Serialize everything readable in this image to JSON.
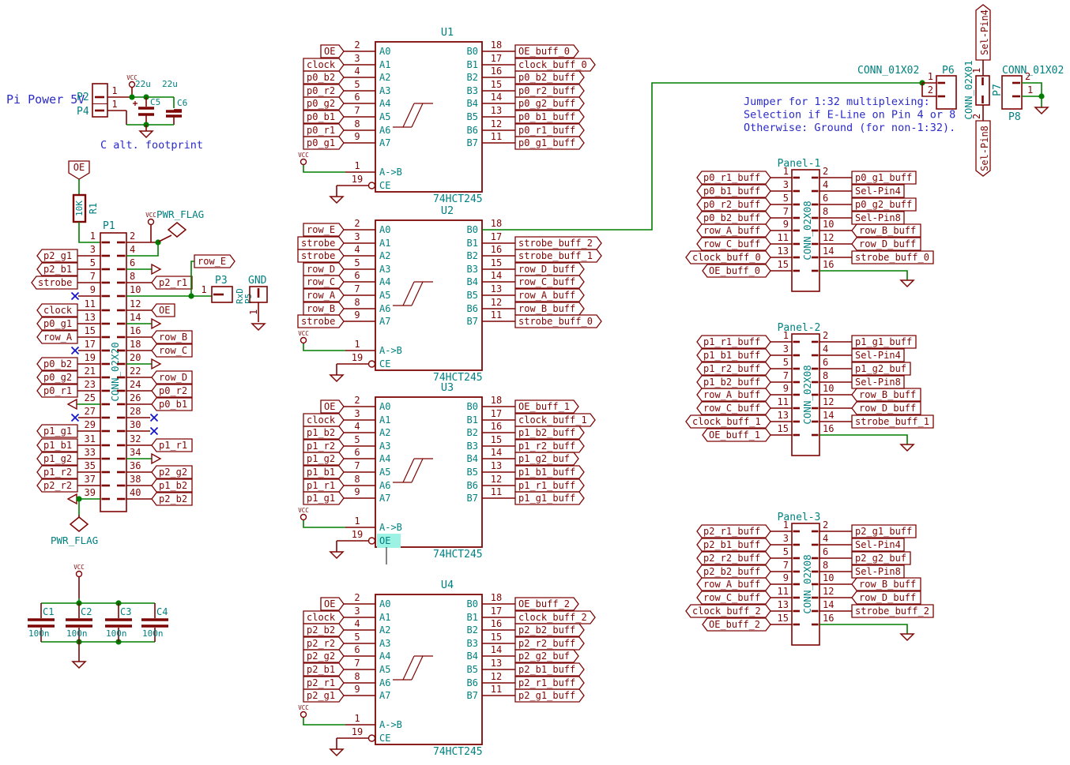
{
  "colors": {
    "part": "#7d0503",
    "wire": "#007d00",
    "accent": "#008080",
    "note": "#2a2ac8",
    "nc": "#1414cc",
    "highlight": "#9cf2e3",
    "bg": "#ffffff"
  },
  "labels": {
    "vcc": "VCC"
  },
  "notes": {
    "pi_power": "Pi Power 5V",
    "c_alt": "C alt. footprint",
    "jumper1": "Jumper for 1:32 multiplexing:",
    "jumper2": "Selection if E-Line on Pin 4 or 8",
    "jumper3": "Otherwise: Ground (for non-1:32)."
  },
  "power_header": {
    "ref_top": "P2",
    "ref_bottom": "P4",
    "pin_top": "1",
    "pin_bottom": "1",
    "caps": [
      {
        "ref": "C5",
        "value": "22u"
      },
      {
        "ref": "C6",
        "value": "22u"
      }
    ]
  },
  "r1": {
    "label": "OE",
    "value": "10K",
    "ref": "R1"
  },
  "p1": {
    "ref": "P1",
    "value": "CONN_02X20",
    "aux": {
      "row_e": "row_E",
      "pwr_flag_top": "PWR_FLAG",
      "pwr_flag_bottom": "PWR_FLAG"
    },
    "left": [
      {
        "pin": "1",
        "kind": "wire",
        "label": null
      },
      {
        "pin": "3",
        "kind": "tagl",
        "label": "p2_g1"
      },
      {
        "pin": "5",
        "kind": "tagl",
        "label": "p2_b1"
      },
      {
        "pin": "7",
        "kind": "tagl",
        "label": "strobe"
      },
      {
        "pin": "9",
        "kind": "nc",
        "label": null
      },
      {
        "pin": "11",
        "kind": "tagl",
        "label": "clock"
      },
      {
        "pin": "13",
        "kind": "tagl",
        "label": "p0_g1"
      },
      {
        "pin": "15",
        "kind": "tagl",
        "label": "row_A"
      },
      {
        "pin": "17",
        "kind": "nc",
        "label": null
      },
      {
        "pin": "19",
        "kind": "tagl",
        "label": "p0_b2"
      },
      {
        "pin": "21",
        "kind": "tagl",
        "label": "p0_g2"
      },
      {
        "pin": "23",
        "kind": "tagl",
        "label": "p0_r1"
      },
      {
        "pin": "25",
        "kind": "arrow_gnd",
        "label": null
      },
      {
        "pin": "27",
        "kind": "nc",
        "label": null
      },
      {
        "pin": "29",
        "kind": "tagl",
        "label": "p1_g1"
      },
      {
        "pin": "31",
        "kind": "tagl",
        "label": "p1_b1"
      },
      {
        "pin": "33",
        "kind": "tagl",
        "label": "p1_g2"
      },
      {
        "pin": "35",
        "kind": "tagl",
        "label": "p1_r2"
      },
      {
        "pin": "37",
        "kind": "tagl",
        "label": "p2_r2"
      },
      {
        "pin": "39",
        "kind": "arrow_flag",
        "label": null
      }
    ],
    "right": [
      {
        "pin": "2",
        "kind": "pwr",
        "label": null
      },
      {
        "pin": "4",
        "kind": "wire",
        "label": null
      },
      {
        "pin": "6",
        "kind": "arrow",
        "label": null
      },
      {
        "pin": "8",
        "kind": "tagr",
        "label": "p2_r1"
      },
      {
        "pin": "10",
        "kind": "wire_rowe",
        "label": null
      },
      {
        "pin": "12",
        "kind": "tagr",
        "label": "OE"
      },
      {
        "pin": "14",
        "kind": "arrow",
        "label": null
      },
      {
        "pin": "16",
        "kind": "tagr",
        "label": "row_B"
      },
      {
        "pin": "18",
        "kind": "tagr",
        "label": "row_C"
      },
      {
        "pin": "20",
        "kind": "arrow",
        "label": null
      },
      {
        "pin": "22",
        "kind": "tagr",
        "label": "row_D"
      },
      {
        "pin": "24",
        "kind": "tagr",
        "label": "p0_r2"
      },
      {
        "pin": "26",
        "kind": "tagr",
        "label": "p0_b1"
      },
      {
        "pin": "28",
        "kind": "nc",
        "label": null
      },
      {
        "pin": "30",
        "kind": "nc",
        "label": null
      },
      {
        "pin": "32",
        "kind": "tagr",
        "label": "p1_r1"
      },
      {
        "pin": "34",
        "kind": "arrow",
        "label": null
      },
      {
        "pin": "36",
        "kind": "tagr",
        "label": "p2_g2"
      },
      {
        "pin": "38",
        "kind": "tagr",
        "label": "p1_b2"
      },
      {
        "pin": "40",
        "kind": "tagr",
        "label": "p2_b2"
      }
    ]
  },
  "pads": {
    "p3_ref": "P3",
    "p3_pin": "1",
    "p3_value": "RxD",
    "p5_ref": "P5",
    "p5_pin": "1",
    "p5_name": "GND"
  },
  "ics": [
    {
      "ref": "U1",
      "value": "74HCT245",
      "ctrl1": {
        "pin": "1",
        "name": "A->B"
      },
      "ctrl2": {
        "pin": "19",
        "name": "CE"
      },
      "highlight": false,
      "a": [
        {
          "pin": "2",
          "name": "A0",
          "label": "OE"
        },
        {
          "pin": "3",
          "name": "A1",
          "label": "clock"
        },
        {
          "pin": "4",
          "name": "A2",
          "label": "p0_b2"
        },
        {
          "pin": "5",
          "name": "A3",
          "label": "p0_r2"
        },
        {
          "pin": "6",
          "name": "A4",
          "label": "p0_g2"
        },
        {
          "pin": "7",
          "name": "A5",
          "label": "p0_b1"
        },
        {
          "pin": "8",
          "name": "A6",
          "label": "p0_r1"
        },
        {
          "pin": "9",
          "name": "A7",
          "label": "p0_g1"
        }
      ],
      "b": [
        {
          "pin": "18",
          "name": "B0",
          "label": "OE_buff_0"
        },
        {
          "pin": "17",
          "name": "B1",
          "label": "clock_buff_0"
        },
        {
          "pin": "16",
          "name": "B2",
          "label": "p0_b2_buff"
        },
        {
          "pin": "15",
          "name": "B3",
          "label": "p0_r2_buff"
        },
        {
          "pin": "14",
          "name": "B4",
          "label": "p0_g2_buff"
        },
        {
          "pin": "13",
          "name": "B5",
          "label": "p0_b1_buff"
        },
        {
          "pin": "12",
          "name": "B6",
          "label": "p0_r1_buff"
        },
        {
          "pin": "11",
          "name": "B7",
          "label": "p0_g1_buff"
        }
      ]
    },
    {
      "ref": "U2",
      "value": "74HCT245",
      "ctrl1": {
        "pin": "1",
        "name": "A->B"
      },
      "ctrl2": {
        "pin": "19",
        "name": "CE"
      },
      "highlight": false,
      "a": [
        {
          "pin": "2",
          "name": "A0",
          "label": "row_E"
        },
        {
          "pin": "3",
          "name": "A1",
          "label": "strobe"
        },
        {
          "pin": "4",
          "name": "A2",
          "label": "strobe"
        },
        {
          "pin": "5",
          "name": "A3",
          "label": "row_D"
        },
        {
          "pin": "6",
          "name": "A4",
          "label": "row_C"
        },
        {
          "pin": "7",
          "name": "A5",
          "label": "row_A"
        },
        {
          "pin": "8",
          "name": "A6",
          "label": "row_B"
        },
        {
          "pin": "9",
          "name": "A7",
          "label": "strobe"
        }
      ],
      "b": [
        {
          "pin": "18",
          "name": "B0",
          "label": null
        },
        {
          "pin": "17",
          "name": "B1",
          "label": "strobe_buff_2"
        },
        {
          "pin": "16",
          "name": "B2",
          "label": "strobe_buff_1"
        },
        {
          "pin": "15",
          "name": "B3",
          "label": "row_D_buff"
        },
        {
          "pin": "14",
          "name": "B4",
          "label": "row_C_buff"
        },
        {
          "pin": "13",
          "name": "B5",
          "label": "row_A_buff"
        },
        {
          "pin": "12",
          "name": "B6",
          "label": "row_B_buff"
        },
        {
          "pin": "11",
          "name": "B7",
          "label": "strobe_buff_0"
        }
      ]
    },
    {
      "ref": "U3",
      "value": "74HCT245",
      "ctrl1": {
        "pin": "1",
        "name": "A->B"
      },
      "ctrl2": {
        "pin": "19",
        "name": "OE"
      },
      "highlight": true,
      "a": [
        {
          "pin": "2",
          "name": "A0",
          "label": "OE"
        },
        {
          "pin": "3",
          "name": "A1",
          "label": "clock"
        },
        {
          "pin": "4",
          "name": "A2",
          "label": "p1_b2"
        },
        {
          "pin": "5",
          "name": "A3",
          "label": "p1_r2"
        },
        {
          "pin": "6",
          "name": "A4",
          "label": "p1_g2"
        },
        {
          "pin": "7",
          "name": "A5",
          "label": "p1_b1"
        },
        {
          "pin": "8",
          "name": "A6",
          "label": "p1_r1"
        },
        {
          "pin": "9",
          "name": "A7",
          "label": "p1_g1"
        }
      ],
      "b": [
        {
          "pin": "18",
          "name": "B0",
          "label": "OE_buff_1"
        },
        {
          "pin": "17",
          "name": "B1",
          "label": "clock_buff_1"
        },
        {
          "pin": "16",
          "name": "B2",
          "label": "p1_b2_buff"
        },
        {
          "pin": "15",
          "name": "B3",
          "label": "p1_r2_buff"
        },
        {
          "pin": "14",
          "name": "B4",
          "label": "p1_g2_buf"
        },
        {
          "pin": "13",
          "name": "B5",
          "label": "p1_b1_buff"
        },
        {
          "pin": "12",
          "name": "B6",
          "label": "p1_r1_buff"
        },
        {
          "pin": "11",
          "name": "B7",
          "label": "p1_g1_buff"
        }
      ]
    },
    {
      "ref": "U4",
      "value": "74HCT245",
      "ctrl1": {
        "pin": "1",
        "name": "A->B"
      },
      "ctrl2": {
        "pin": "19",
        "name": "CE"
      },
      "highlight": false,
      "a": [
        {
          "pin": "2",
          "name": "A0",
          "label": "OE"
        },
        {
          "pin": "3",
          "name": "A1",
          "label": "clock"
        },
        {
          "pin": "4",
          "name": "A2",
          "label": "p2_b2"
        },
        {
          "pin": "5",
          "name": "A3",
          "label": "p2_r2"
        },
        {
          "pin": "6",
          "name": "A4",
          "label": "p2_g2"
        },
        {
          "pin": "7",
          "name": "A5",
          "label": "p2_b1"
        },
        {
          "pin": "8",
          "name": "A6",
          "label": "p2_r1"
        },
        {
          "pin": "9",
          "name": "A7",
          "label": "p2_g1"
        }
      ],
      "b": [
        {
          "pin": "18",
          "name": "B0",
          "label": "OE_buff_2"
        },
        {
          "pin": "17",
          "name": "B1",
          "label": "clock_buff_2"
        },
        {
          "pin": "16",
          "name": "B2",
          "label": "p2_b2_buff"
        },
        {
          "pin": "15",
          "name": "B3",
          "label": "p2_r2_buff"
        },
        {
          "pin": "14",
          "name": "B4",
          "label": "p2_g2_buf"
        },
        {
          "pin": "13",
          "name": "B5",
          "label": "p2_b1_buff"
        },
        {
          "pin": "12",
          "name": "B6",
          "label": "p2_r1_buff"
        },
        {
          "pin": "11",
          "name": "B7",
          "label": "p2_g1_buff"
        }
      ]
    }
  ],
  "panels": [
    {
      "title": "Panel-1",
      "value": "CONN_02X08",
      "left": [
        {
          "pin": "1",
          "label": "p0_r1_buff"
        },
        {
          "pin": "3",
          "label": "p0_b1_buff"
        },
        {
          "pin": "5",
          "label": "p0_r2_buff"
        },
        {
          "pin": "7",
          "label": "p0_b2_buff"
        },
        {
          "pin": "9",
          "label": "row_A_buff"
        },
        {
          "pin": "11",
          "label": "row_C_buff"
        },
        {
          "pin": "13",
          "label": "clock_buff_0"
        },
        {
          "pin": "15",
          "label": "OE_buff_0"
        }
      ],
      "right": [
        {
          "pin": "2",
          "label": "p0_g1_buff",
          "shape": "rect"
        },
        {
          "pin": "4",
          "label": "Sel-Pin4",
          "shape": "rect"
        },
        {
          "pin": "6",
          "label": "p0_g2_buff",
          "shape": "rect"
        },
        {
          "pin": "8",
          "label": "Sel-Pin8",
          "shape": "rect"
        },
        {
          "pin": "10",
          "label": "row_B_buff",
          "shape": "tagl"
        },
        {
          "pin": "12",
          "label": "row_D_buff",
          "shape": "tagl"
        },
        {
          "pin": "14",
          "label": "strobe_buff_0",
          "shape": "rect"
        },
        {
          "pin": "16",
          "label": null,
          "shape": "rect"
        }
      ]
    },
    {
      "title": "Panel-2",
      "value": "CONN_02X08",
      "left": [
        {
          "pin": "1",
          "label": "p1_r1_buff"
        },
        {
          "pin": "3",
          "label": "p1_b1_buff"
        },
        {
          "pin": "5",
          "label": "p1_r2_buff"
        },
        {
          "pin": "7",
          "label": "p1_b2_buff"
        },
        {
          "pin": "9",
          "label": "row_A_buff"
        },
        {
          "pin": "11",
          "label": "row_C_buff"
        },
        {
          "pin": "13",
          "label": "clock_buff_1"
        },
        {
          "pin": "15",
          "label": "OE_buff_1"
        }
      ],
      "right": [
        {
          "pin": "2",
          "label": "p1_g1_buff",
          "shape": "rect"
        },
        {
          "pin": "4",
          "label": "Sel-Pin4",
          "shape": "rect"
        },
        {
          "pin": "6",
          "label": "p1_g2_buf",
          "shape": "rect"
        },
        {
          "pin": "8",
          "label": "Sel-Pin8",
          "shape": "rect"
        },
        {
          "pin": "10",
          "label": "row_B_buff",
          "shape": "tagl"
        },
        {
          "pin": "12",
          "label": "row_D_buff",
          "shape": "tagl"
        },
        {
          "pin": "14",
          "label": "strobe_buff_1",
          "shape": "rect"
        },
        {
          "pin": "16",
          "label": null,
          "shape": "rect"
        }
      ]
    },
    {
      "title": "Panel-3",
      "value": "CONN_02X08",
      "left": [
        {
          "pin": "1",
          "label": "p2_r1_buff"
        },
        {
          "pin": "3",
          "label": "p2_b1_buff"
        },
        {
          "pin": "5",
          "label": "p2_r2_buff"
        },
        {
          "pin": "7",
          "label": "p2_b2_buff"
        },
        {
          "pin": "9",
          "label": "row_A_buff"
        },
        {
          "pin": "11",
          "label": "row_C_buff"
        },
        {
          "pin": "13",
          "label": "clock_buff_2"
        },
        {
          "pin": "15",
          "label": "OE_buff_2"
        }
      ],
      "right": [
        {
          "pin": "2",
          "label": "p2_g1_buff",
          "shape": "rect"
        },
        {
          "pin": "4",
          "label": "Sel-Pin4",
          "shape": "rect"
        },
        {
          "pin": "6",
          "label": "p2_g2_buf",
          "shape": "rect"
        },
        {
          "pin": "8",
          "label": "Sel-Pin8",
          "shape": "rect"
        },
        {
          "pin": "10",
          "label": "row_B_buff",
          "shape": "tagl"
        },
        {
          "pin": "12",
          "label": "row_D_buff",
          "shape": "tagl"
        },
        {
          "pin": "14",
          "label": "strobe_buff_2",
          "shape": "rect"
        },
        {
          "pin": "16",
          "label": null,
          "shape": "rect"
        }
      ]
    }
  ],
  "top_right": {
    "p6": {
      "value": "CONN_01X02",
      "ref": "P6",
      "pin1": "1",
      "pin2": "2"
    },
    "p7": {
      "value": "CONN_02X01",
      "ref": "P7",
      "pin1": "1",
      "pin2": "2",
      "label_top": "Sel-Pin4",
      "label_bottom": "Sel-Pin8"
    },
    "p8": {
      "value": "CONN_01X02",
      "ref": "P8",
      "pin1": "1",
      "pin2": "2"
    }
  },
  "decoupling": {
    "caps": [
      {
        "ref": "C1",
        "value": "100n"
      },
      {
        "ref": "C2",
        "value": "100n"
      },
      {
        "ref": "C3",
        "value": "100n"
      },
      {
        "ref": "C4",
        "value": "100n"
      }
    ]
  }
}
